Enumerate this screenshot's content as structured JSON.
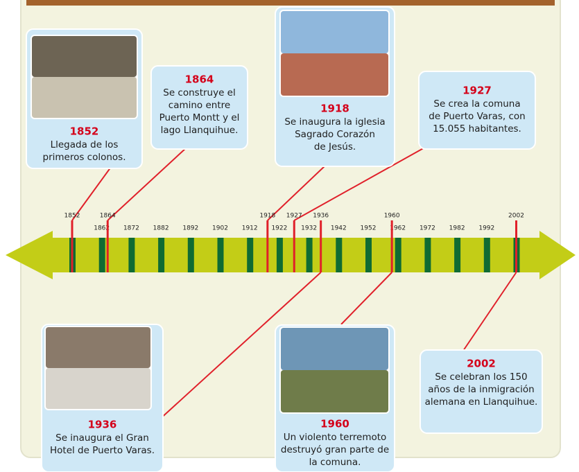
{
  "timeline": {
    "decade_ticks": [
      1862,
      1872,
      1882,
      1892,
      1902,
      1912,
      1922,
      1932,
      1942,
      1952,
      1962,
      1972,
      1982,
      1992
    ],
    "events": [
      {
        "year": 1852,
        "lines": [
          "Llegada de los",
          "primeros colonos."
        ]
      },
      {
        "year": 1864,
        "lines": [
          "Se construye el",
          "camino entre",
          "Puerto Montt y el",
          "lago Llanquihue."
        ]
      },
      {
        "year": 1918,
        "lines": [
          "Se inaugura la iglesia",
          "Sagrado Corazón",
          "de Jesús."
        ]
      },
      {
        "year": 1927,
        "lines": [
          "Se crea la comuna",
          "de Puerto Varas, con",
          "15.055 habitantes."
        ]
      },
      {
        "year": 1936,
        "lines": [
          "Se inaugura el Gran",
          "Hotel de Puerto Varas."
        ]
      },
      {
        "year": 1960,
        "lines": [
          "Un violento terremoto",
          "destruyó gran parte de",
          "la comuna."
        ]
      },
      {
        "year": 2002,
        "lines": [
          "Se celebran los 150",
          "años de la inmigración",
          "alemana en Llanquihue."
        ]
      }
    ]
  }
}
